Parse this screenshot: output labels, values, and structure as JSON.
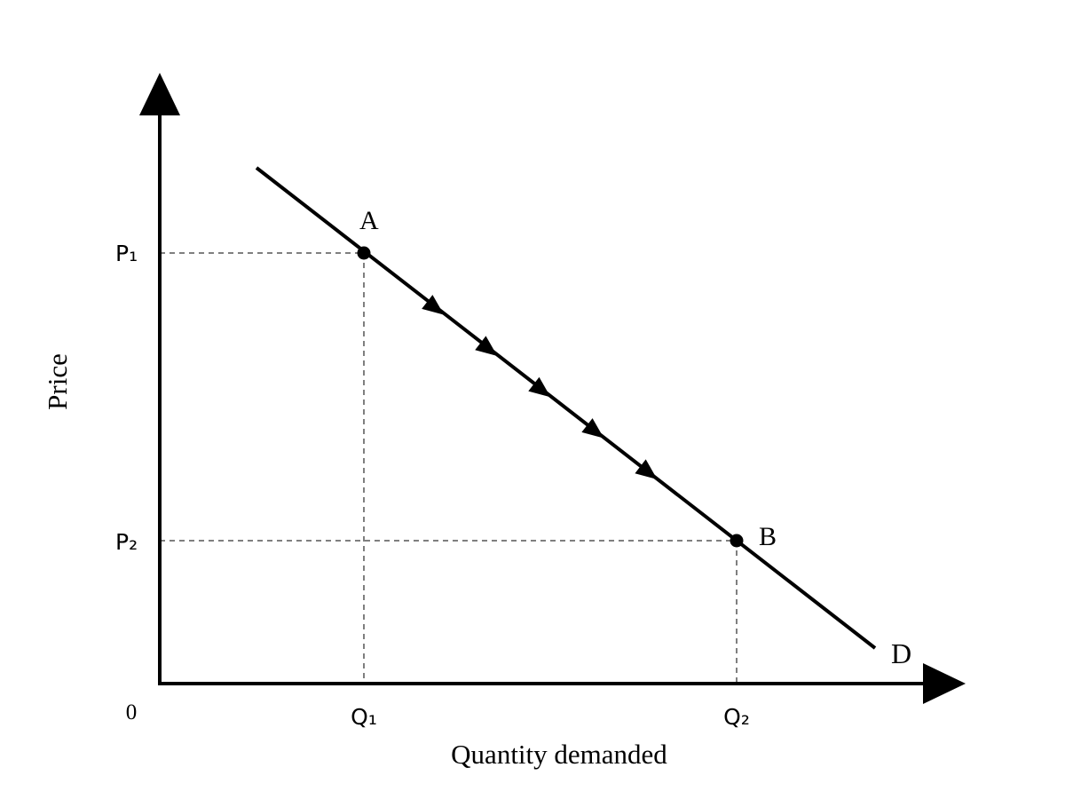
{
  "axes": {
    "x_label": "Quantity demanded",
    "y_label": "Price",
    "origin_label": "0"
  },
  "price_levels": [
    {
      "label": "P₁"
    },
    {
      "label": "P₂"
    }
  ],
  "quantity_levels": [
    {
      "label": "Q₁"
    },
    {
      "label": "Q₂"
    }
  ],
  "points": [
    {
      "label": "A"
    },
    {
      "label": "B"
    }
  ],
  "curve": {
    "label": "D",
    "movement_arrow_count": 5
  }
}
